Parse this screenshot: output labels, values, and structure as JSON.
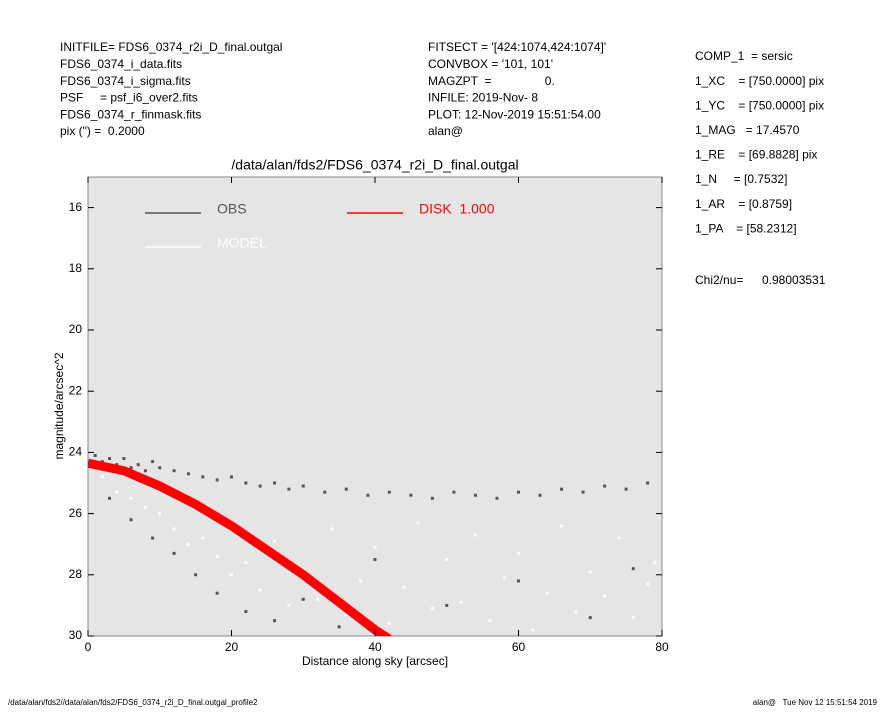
{
  "header": {
    "left": [
      "INITFILE= FDS6_0374_r2i_D_final.outgal",
      "FDS6_0374_i_data.fits",
      "FDS6_0374_i_sigma.fits",
      "PSF     = psf_i6_over2.fits",
      "FDS6_0374_r_finmask.fits",
      "pix (\") =  0.2000"
    ],
    "middle": [
      "FITSECT = '[424:1074,424:1074]'",
      "CONVBOX = '101, 101'",
      "MAGZPT  =                0.",
      "INFILE: 2019-Nov- 8",
      "PLOT: 12-Nov-2019 15:51:54.00",
      "alan@"
    ],
    "right": [
      "COMP_1  = sersic",
      "1_XC    = [750.0000] pix",
      "1_YC    = [750.0000] pix",
      "1_MAG   = 17.4570",
      "1_RE    = [69.8828] pix",
      "1_N     = [0.7532]",
      "1_AR    = [0.8759]",
      "1_PA    = [58.2312]"
    ],
    "chi2_label": "Chi2/nu=",
    "chi2_value": "0.98003531"
  },
  "footer": {
    "left": "/data/alan/fds2//data/alan/fds2/FDS6_0374_r2i_D_final.outgal_profile2",
    "right": "alan@   Tue Nov 12 15:51:54 2019"
  },
  "chart_data": {
    "type": "scatter",
    "title": "/data/alan/fds2/FDS6_0374_r2i_D_final.outgal",
    "x_label": "Distance along sky [arcsec]",
    "y_label": "magnitude/arcsec^2",
    "xlim": [
      0,
      80
    ],
    "xticks": [
      0,
      20,
      40,
      60,
      80
    ],
    "ylim": [
      30,
      15
    ],
    "yticks": [
      16,
      18,
      20,
      22,
      24,
      26,
      28,
      30
    ],
    "y_inverted": true,
    "series": [
      {
        "name": "OBS",
        "color": "#555555",
        "mark": "points",
        "x": [
          1,
          2,
          3,
          4,
          5,
          6,
          7,
          8,
          9,
          10,
          12,
          14,
          16,
          18,
          20,
          22,
          24,
          26,
          28,
          30,
          33,
          36,
          39,
          42,
          45,
          48,
          51,
          54,
          57,
          60,
          63,
          66,
          69,
          72,
          75,
          78,
          3,
          6,
          9,
          12,
          15,
          18,
          22,
          26,
          30,
          35,
          40,
          50,
          60,
          70,
          76
        ],
        "values": [
          24.1,
          24.3,
          24.2,
          24.4,
          24.2,
          24.5,
          24.4,
          24.6,
          24.3,
          24.5,
          24.6,
          24.7,
          24.8,
          24.9,
          24.8,
          25.0,
          25.1,
          25.0,
          25.2,
          25.1,
          25.3,
          25.2,
          25.4,
          25.3,
          25.4,
          25.5,
          25.3,
          25.4,
          25.5,
          25.3,
          25.4,
          25.2,
          25.3,
          25.1,
          25.2,
          25.0,
          25.5,
          26.2,
          26.8,
          27.3,
          28.0,
          28.6,
          29.2,
          29.5,
          28.8,
          29.7,
          27.5,
          29.0,
          28.2,
          29.4,
          27.8
        ]
      },
      {
        "name": "MODEL",
        "color": "#ffffff",
        "mark": "points",
        "x": [
          2,
          4,
          6,
          8,
          10,
          12,
          14,
          16,
          18,
          20,
          22,
          24,
          26,
          28,
          30,
          32,
          34,
          36,
          38,
          40,
          42,
          44,
          46,
          48,
          50,
          52,
          54,
          56,
          58,
          60,
          62,
          64,
          66,
          68,
          70,
          72,
          74,
          76,
          78,
          79
        ],
        "values": [
          24.8,
          25.3,
          25.5,
          25.8,
          26.0,
          26.5,
          27.0,
          26.8,
          27.4,
          28.0,
          27.6,
          28.5,
          26.9,
          29.0,
          27.8,
          28.8,
          26.5,
          29.3,
          28.2,
          27.1,
          29.6,
          28.4,
          26.3,
          29.1,
          27.5,
          28.9,
          26.7,
          29.5,
          28.1,
          27.3,
          29.8,
          28.6,
          26.4,
          29.2,
          27.9,
          28.7,
          26.8,
          29.4,
          28.3,
          27.6
        ]
      },
      {
        "name": "DISK  1.000",
        "color": "#ff0000",
        "mark": "line",
        "x": [
          0,
          5,
          10,
          15,
          20,
          25,
          30,
          35,
          40,
          42
        ],
        "values": [
          24.35,
          24.6,
          25.1,
          25.7,
          26.4,
          27.2,
          28.0,
          28.9,
          29.8,
          30.1
        ]
      }
    ]
  }
}
